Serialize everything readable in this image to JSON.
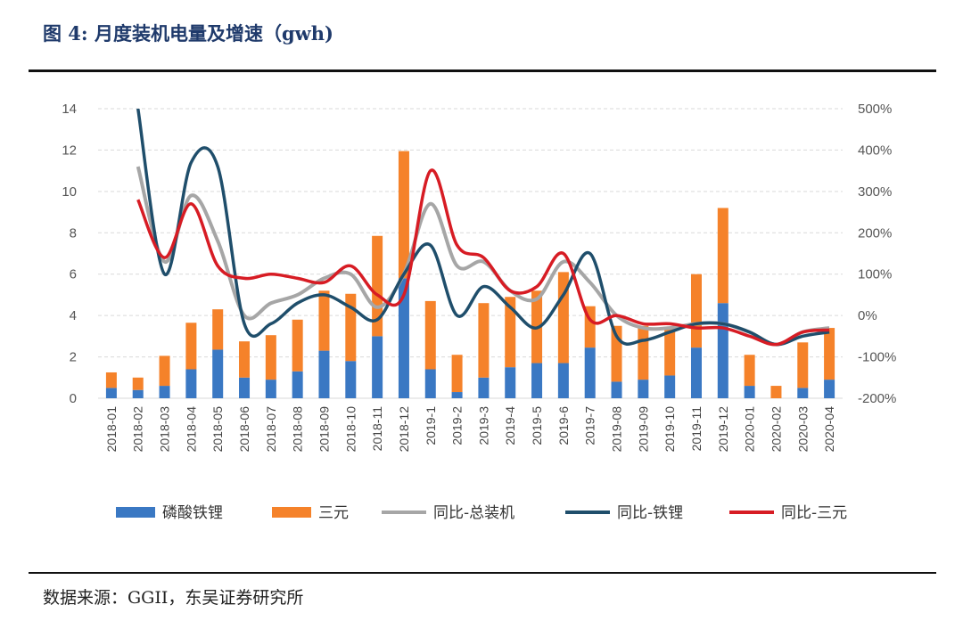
{
  "header": {
    "title": "图 4:  月度装机电量及增速（gwh)"
  },
  "footer": {
    "source": "数据来源：GGII，东吴证券研究所"
  },
  "chart_data": {
    "type": "bar",
    "stacked": true,
    "categories": [
      "2018-01",
      "2018-02",
      "2018-03",
      "2018-04",
      "2018-05",
      "2018-06",
      "2018-07",
      "2018-08",
      "2018-09",
      "2018-10",
      "2018-11",
      "2018-12",
      "2019-1",
      "2019-2",
      "2019-3",
      "2019-4",
      "2019-5",
      "2019-6",
      "2019-7",
      "2019-08",
      "2019-09",
      "2019-10",
      "2019-11",
      "2019-12",
      "2020-01",
      "2020-02",
      "2020-03",
      "2020-04"
    ],
    "y_left": {
      "min": 0,
      "max": 14,
      "ticks": [
        "0",
        "2",
        "4",
        "6",
        "8",
        "10",
        "12",
        "14"
      ]
    },
    "y_right": {
      "min": -200,
      "max": 500,
      "ticks": [
        "-200%",
        "-100%",
        "0%",
        "100%",
        "200%",
        "300%",
        "400%",
        "500%"
      ]
    },
    "legend_position": "bottom",
    "grid": true,
    "series": [
      {
        "name": "磷酸铁锂",
        "type": "bar",
        "axis": "left",
        "color": "#3a78c3",
        "values": [
          0.5,
          0.4,
          0.6,
          1.4,
          2.35,
          1.0,
          0.9,
          1.3,
          2.3,
          1.8,
          3.0,
          5.8,
          1.4,
          0.3,
          1.0,
          1.5,
          1.7,
          1.7,
          2.45,
          0.8,
          0.9,
          1.1,
          2.45,
          4.6,
          0.6,
          0.0,
          0.5,
          0.9
        ]
      },
      {
        "name": "三元",
        "type": "bar",
        "axis": "left",
        "color": "#f5822a",
        "values": [
          0.75,
          0.6,
          1.45,
          2.25,
          1.95,
          1.75,
          2.15,
          2.5,
          2.9,
          3.25,
          4.85,
          6.15,
          3.3,
          1.8,
          3.6,
          3.4,
          3.5,
          4.4,
          2.0,
          2.7,
          2.6,
          2.3,
          3.55,
          4.6,
          1.5,
          0.6,
          2.2,
          2.5
        ]
      },
      {
        "name": "同比-总装机",
        "type": "line",
        "axis": "right",
        "color": "#a6a6a6",
        "values": [
          null,
          360,
          130,
          290,
          180,
          0,
          30,
          50,
          90,
          100,
          20,
          100,
          270,
          120,
          130,
          60,
          40,
          130,
          80,
          0,
          -30,
          -30,
          -20,
          -20,
          -40,
          -70,
          -40,
          -30
        ]
      },
      {
        "name": "同比-铁锂",
        "type": "line",
        "axis": "right",
        "color": "#1f4e6b",
        "values": [
          null,
          500,
          100,
          370,
          360,
          -20,
          -20,
          30,
          50,
          20,
          -10,
          100,
          170,
          0,
          70,
          20,
          -30,
          50,
          150,
          -50,
          -60,
          -40,
          -20,
          -20,
          -40,
          -70,
          -50,
          -40
        ]
      },
      {
        "name": "同比-三元",
        "type": "line",
        "axis": "right",
        "color": "#d71c24",
        "values": [
          null,
          280,
          140,
          270,
          120,
          90,
          100,
          90,
          80,
          120,
          50,
          50,
          350,
          170,
          140,
          60,
          70,
          150,
          -10,
          0,
          -20,
          -20,
          -30,
          -30,
          -50,
          -70,
          -40,
          -35
        ]
      }
    ]
  }
}
